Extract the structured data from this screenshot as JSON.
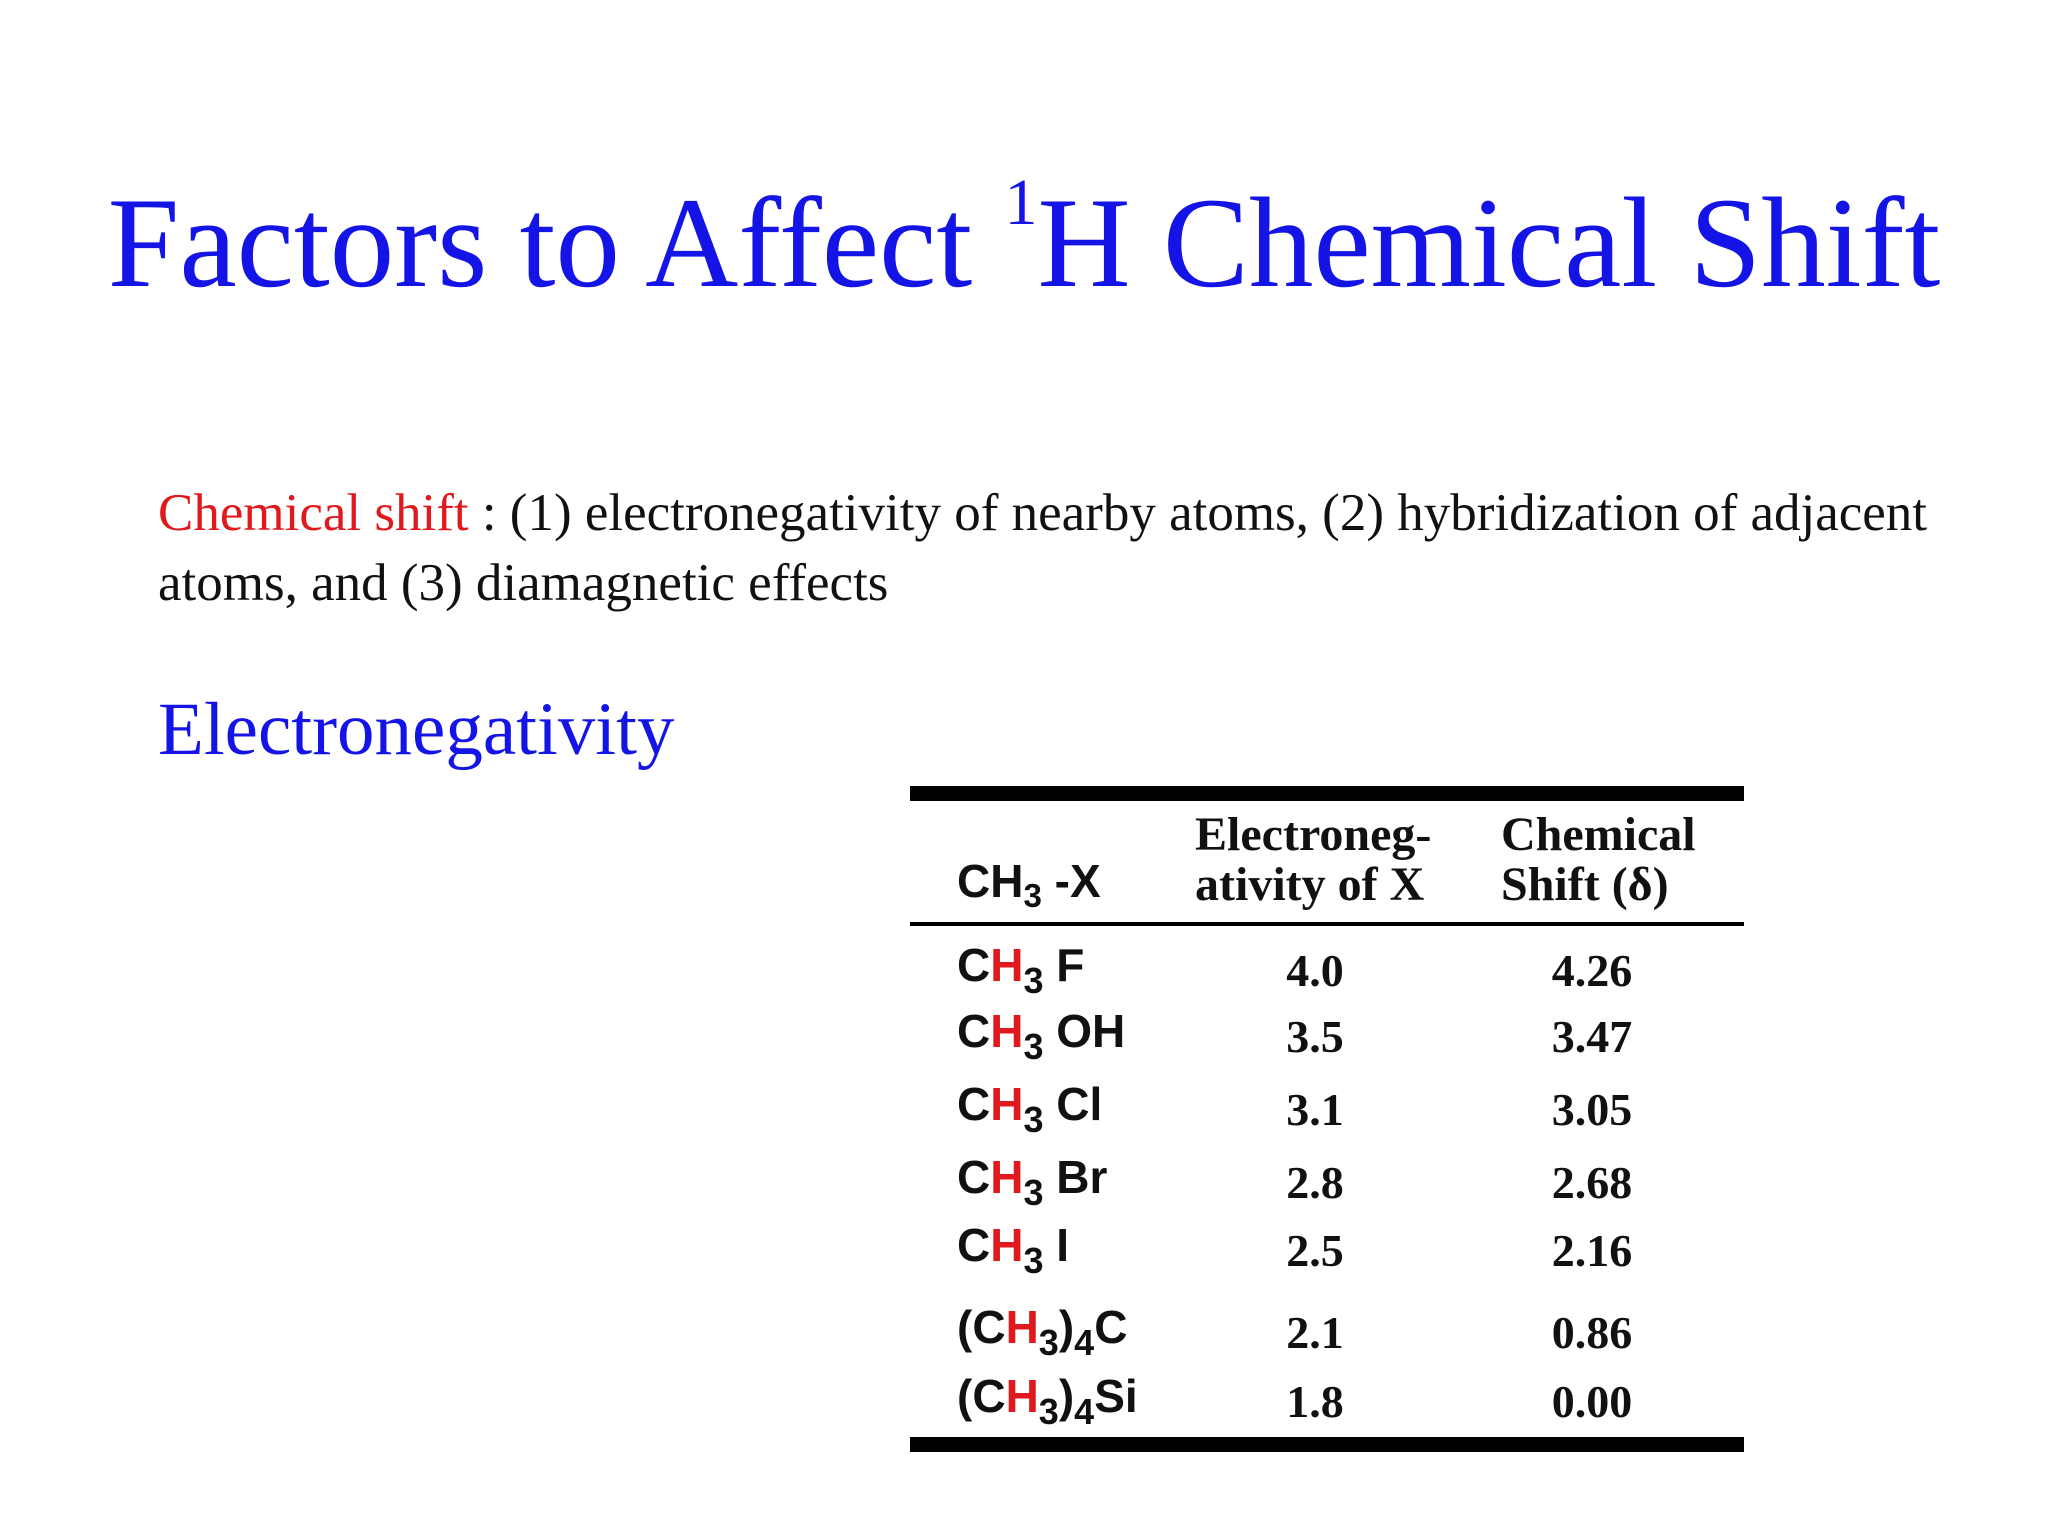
{
  "title": {
    "prefix": "Factors to Affect ",
    "superscript": "1",
    "suffix": "H Chemical Shift"
  },
  "intro": {
    "highlight": "Chemical shift",
    "text": " : (1) electronegativity of nearby atoms, (2) hybridization of adjacent atoms, and (3) diamagnetic effects"
  },
  "section_heading": "Electronegativity",
  "table": {
    "header": {
      "col1_prefix": "CH",
      "col1_sub": "3",
      "col1_suffix": " -X",
      "col2_line1": "Electroneg-",
      "col2_line2": "ativity of X",
      "col3_line1": "Chemical",
      "col3_line2": "Shift (δ)"
    },
    "rows": [
      {
        "pre": "",
        "c": "C",
        "h": "H",
        "n": "3",
        "post": "",
        "x": " F",
        "en": "4.0",
        "shift": "4.26"
      },
      {
        "pre": "",
        "c": "C",
        "h": "H",
        "n": "3",
        "post": "",
        "x": " OH",
        "en": "3.5",
        "shift": "3.47"
      },
      {
        "pre": "",
        "c": "C",
        "h": "H",
        "n": "3",
        "post": "",
        "x": " Cl",
        "en": "3.1",
        "shift": "3.05"
      },
      {
        "pre": "",
        "c": "C",
        "h": "H",
        "n": "3",
        "post": "",
        "x": " Br",
        "en": "2.8",
        "shift": "2.68"
      },
      {
        "pre": "",
        "c": "C",
        "h": "H",
        "n": "3",
        "post": "",
        "x": " I",
        "en": "2.5",
        "shift": "2.16"
      },
      {
        "pre": "(",
        "c": "C",
        "h": "H",
        "n": "3",
        "post": ")",
        "x": "4",
        "y": "C",
        "en": "2.1",
        "shift": "0.86"
      },
      {
        "pre": "(",
        "c": "C",
        "h": "H",
        "n": "3",
        "post": ")",
        "x": "4",
        "y": "Si",
        "en": "1.8",
        "shift": "0.00"
      }
    ]
  }
}
